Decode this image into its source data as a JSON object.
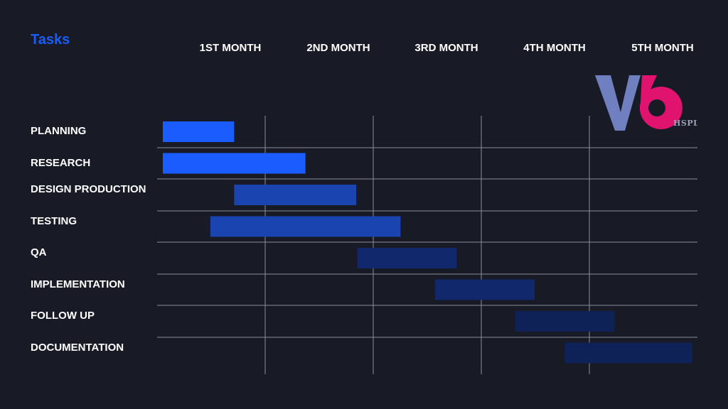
{
  "title": "Tasks",
  "brand": {
    "logo_text": "V6",
    "logo_subtext": "HSPL",
    "colors": {
      "v": "#6f7fbf",
      "six": "#e0136f",
      "sub": "#a35ab5"
    }
  },
  "chart_data": {
    "type": "gantt",
    "title": "Tasks",
    "columns": [
      "1ST MONTH",
      "2ND MONTH",
      "3RD MONTH",
      "4TH MONTH",
      "5TH MONTH"
    ],
    "x_range": [
      0,
      5
    ],
    "grid": true,
    "tasks": [
      {
        "name": "PLANNING",
        "start": 0.0,
        "end": 0.66,
        "color": "#1a5cff"
      },
      {
        "name": "RESEARCH",
        "start": 0.0,
        "end": 1.32,
        "color": "#1a5cff"
      },
      {
        "name": "DESIGN PRODUCTION",
        "start": 0.66,
        "end": 1.79,
        "color": "#1a44b0"
      },
      {
        "name": "TESTING",
        "start": 0.44,
        "end": 2.2,
        "color": "#1a44b0"
      },
      {
        "name": "QA",
        "start": 1.8,
        "end": 2.72,
        "color": "#11296c"
      },
      {
        "name": "IMPLEMENTATION",
        "start": 2.52,
        "end": 3.44,
        "color": "#11296c"
      },
      {
        "name": "FOLLOW UP",
        "start": 3.26,
        "end": 4.18,
        "color": "#0f2258"
      },
      {
        "name": "DOCUMENTATION",
        "start": 3.72,
        "end": 4.9,
        "color": "#0f2258"
      }
    ]
  }
}
